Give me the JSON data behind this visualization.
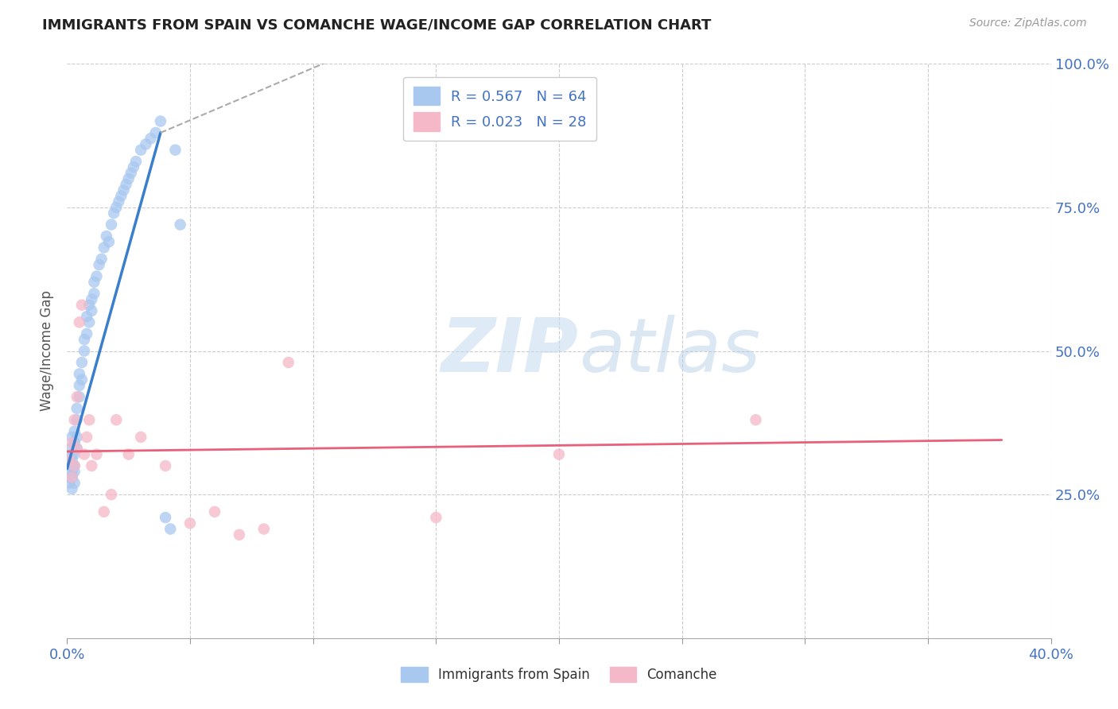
{
  "title": "IMMIGRANTS FROM SPAIN VS COMANCHE WAGE/INCOME GAP CORRELATION CHART",
  "source": "Source: ZipAtlas.com",
  "ylabel": "Wage/Income Gap",
  "xlim": [
    0.0,
    0.4
  ],
  "ylim": [
    0.0,
    1.0
  ],
  "blue_color": "#A8C8F0",
  "blue_line_color": "#3A7FCC",
  "pink_color": "#F5B8C8",
  "pink_line_color": "#E8607A",
  "r_blue": 0.567,
  "n_blue": 64,
  "r_pink": 0.023,
  "n_pink": 28,
  "watermark_zip": "ZIP",
  "watermark_atlas": "atlas",
  "legend1": "Immigrants from Spain",
  "legend2": "Comanche",
  "blue_scatter_x": [
    0.001,
    0.001,
    0.001,
    0.001,
    0.001,
    0.002,
    0.002,
    0.002,
    0.002,
    0.002,
    0.002,
    0.002,
    0.002,
    0.003,
    0.003,
    0.003,
    0.003,
    0.003,
    0.003,
    0.004,
    0.004,
    0.004,
    0.004,
    0.005,
    0.005,
    0.005,
    0.006,
    0.006,
    0.007,
    0.007,
    0.008,
    0.008,
    0.009,
    0.009,
    0.01,
    0.01,
    0.011,
    0.011,
    0.012,
    0.013,
    0.014,
    0.015,
    0.016,
    0.017,
    0.018,
    0.019,
    0.02,
    0.021,
    0.022,
    0.023,
    0.024,
    0.025,
    0.026,
    0.027,
    0.028,
    0.03,
    0.032,
    0.034,
    0.036,
    0.038,
    0.04,
    0.042,
    0.044,
    0.046
  ],
  "blue_scatter_y": [
    0.3,
    0.27,
    0.33,
    0.31,
    0.28,
    0.32,
    0.29,
    0.35,
    0.28,
    0.3,
    0.26,
    0.31,
    0.28,
    0.34,
    0.36,
    0.32,
    0.29,
    0.27,
    0.3,
    0.38,
    0.4,
    0.35,
    0.33,
    0.42,
    0.44,
    0.46,
    0.48,
    0.45,
    0.5,
    0.52,
    0.53,
    0.56,
    0.55,
    0.58,
    0.57,
    0.59,
    0.6,
    0.62,
    0.63,
    0.65,
    0.66,
    0.68,
    0.7,
    0.69,
    0.72,
    0.74,
    0.75,
    0.76,
    0.77,
    0.78,
    0.79,
    0.8,
    0.81,
    0.82,
    0.83,
    0.85,
    0.86,
    0.87,
    0.88,
    0.9,
    0.21,
    0.19,
    0.85,
    0.72
  ],
  "pink_scatter_x": [
    0.001,
    0.002,
    0.002,
    0.003,
    0.003,
    0.004,
    0.004,
    0.005,
    0.006,
    0.007,
    0.008,
    0.009,
    0.01,
    0.012,
    0.015,
    0.018,
    0.02,
    0.025,
    0.03,
    0.04,
    0.05,
    0.06,
    0.07,
    0.08,
    0.09,
    0.15,
    0.2,
    0.28
  ],
  "pink_scatter_y": [
    0.31,
    0.34,
    0.28,
    0.38,
    0.3,
    0.42,
    0.33,
    0.55,
    0.58,
    0.32,
    0.35,
    0.38,
    0.3,
    0.32,
    0.22,
    0.25,
    0.38,
    0.32,
    0.35,
    0.3,
    0.2,
    0.22,
    0.18,
    0.19,
    0.48,
    0.21,
    0.32,
    0.38
  ],
  "blue_line_x0": 0.0,
  "blue_line_y0": 0.295,
  "blue_line_x1": 0.038,
  "blue_line_y1": 0.88,
  "blue_line_dash_x1": 0.115,
  "blue_line_dash_y1": 1.02,
  "pink_line_x0": 0.0,
  "pink_line_y0": 0.325,
  "pink_line_x1": 0.38,
  "pink_line_y1": 0.345
}
